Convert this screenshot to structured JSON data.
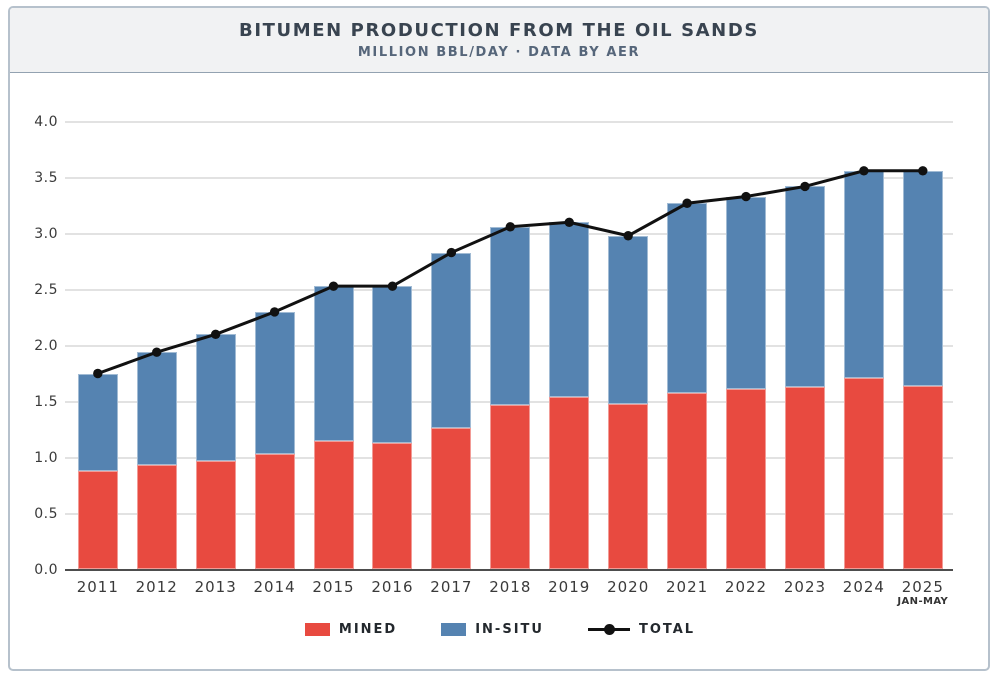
{
  "chart_data": {
    "type": "bar",
    "stacked": true,
    "title": "BITUMEN PRODUCTION FROM THE OIL SANDS",
    "subtitle": "MILLION BBL/DAY · DATA BY AER",
    "categories": [
      "2011",
      "2012",
      "2013",
      "2014",
      "2015",
      "2016",
      "2017",
      "2018",
      "2019",
      "2020",
      "2021",
      "2022",
      "2023",
      "2024",
      "2025"
    ],
    "x_note": {
      "category": "2025",
      "label": "JAN-MAY"
    },
    "series": [
      {
        "name": "MINED",
        "color": "#e84a40",
        "values": [
          0.88,
          0.93,
          0.97,
          1.03,
          1.15,
          1.13,
          1.26,
          1.47,
          1.54,
          1.48,
          1.58,
          1.61,
          1.63,
          1.71,
          1.64
        ]
      },
      {
        "name": "IN-SITU",
        "color": "#5583b1",
        "values": [
          0.87,
          1.01,
          1.13,
          1.27,
          1.38,
          1.4,
          1.57,
          1.59,
          1.56,
          1.5,
          1.69,
          1.72,
          1.79,
          1.85,
          1.92
        ]
      }
    ],
    "line_series": {
      "name": "TOTAL",
      "color": "#111111",
      "values": [
        1.75,
        1.94,
        2.1,
        2.3,
        2.53,
        2.53,
        2.83,
        3.06,
        3.1,
        2.98,
        3.27,
        3.33,
        3.42,
        3.56,
        3.56
      ]
    },
    "ylim": [
      0.0,
      4.0
    ],
    "yticks": [
      0.0,
      0.5,
      1.0,
      1.5,
      2.0,
      2.5,
      3.0,
      3.5,
      4.0
    ],
    "grid": true,
    "legend_position": "bottom"
  }
}
